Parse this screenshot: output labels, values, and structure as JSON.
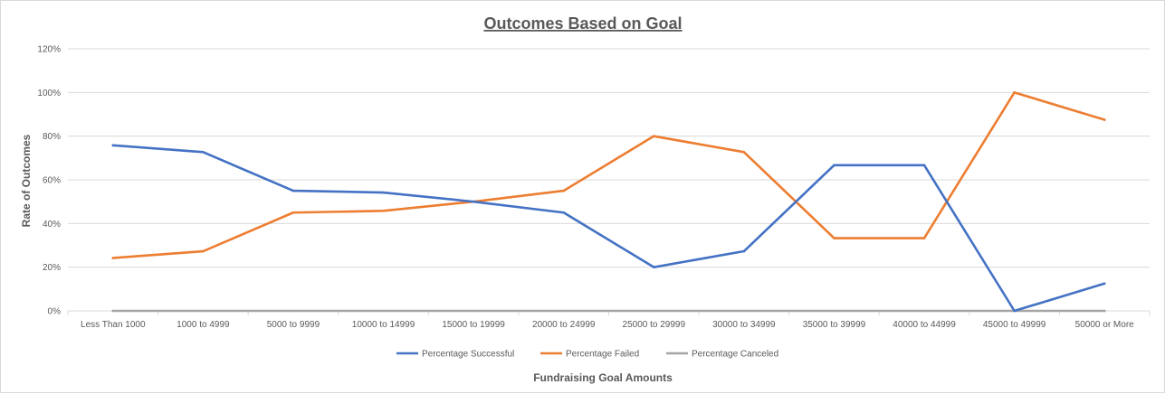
{
  "chart_data": {
    "type": "line",
    "title": "Outcomes  Based  on  Goal",
    "xlabel": "Fundraising Goal Amounts",
    "ylabel": "Rate of Outcomes",
    "ylim": [
      0,
      1.2
    ],
    "yticks": [
      0,
      0.2,
      0.4,
      0.6,
      0.8,
      1.0,
      1.2
    ],
    "ytick_labels": [
      "0%",
      "20%",
      "40%",
      "60%",
      "80%",
      "100%",
      "120%"
    ],
    "grid": true,
    "legend_position": "bottom",
    "categories": [
      "Less Than 1000",
      "1000 to 4999",
      "5000 to 9999",
      "10000 to 14999",
      "15000 to 19999",
      "20000 to 24999",
      "25000 to 29999",
      "30000 to 34999",
      "35000 to 39999",
      "40000 to 44999",
      "45000 to 49999",
      "50000 or More"
    ],
    "series": [
      {
        "name": "Percentage Successful",
        "color": "#4472c4",
        "values": [
          0.758,
          0.727,
          0.55,
          0.542,
          0.5,
          0.45,
          0.2,
          0.273,
          0.667,
          0.667,
          0.0,
          0.125
        ]
      },
      {
        "name": "Percentage Failed",
        "color": "#ed7d31",
        "values": [
          0.242,
          0.273,
          0.45,
          0.458,
          0.5,
          0.55,
          0.8,
          0.727,
          0.333,
          0.333,
          1.0,
          0.875
        ]
      },
      {
        "name": "Percentage Canceled",
        "color": "#a5a5a5",
        "values": [
          0,
          0,
          0,
          0,
          0,
          0,
          0,
          0,
          0,
          0,
          0,
          0
        ]
      }
    ]
  }
}
